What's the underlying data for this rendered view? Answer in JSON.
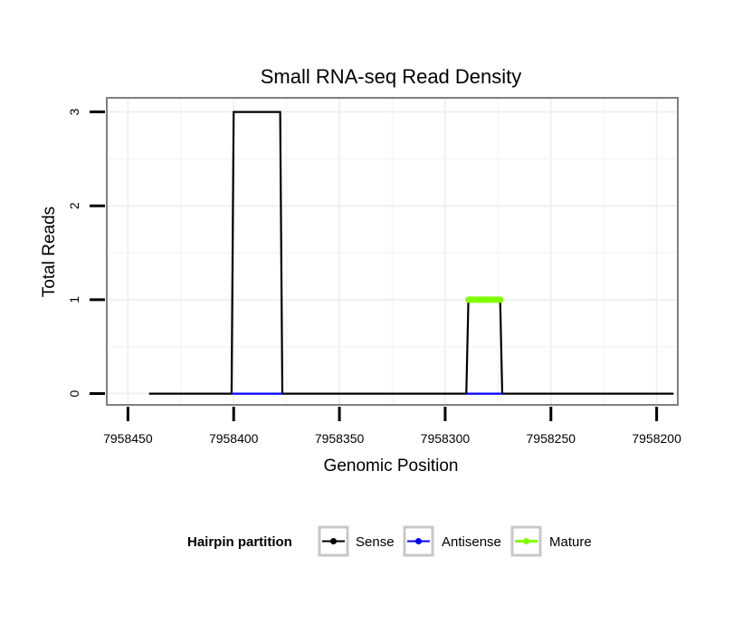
{
  "chart_data": {
    "type": "line",
    "title": "Small RNA-seq Read Density",
    "xlabel": "Genomic Position",
    "ylabel": "Total Reads",
    "x_reversed": true,
    "xlim": [
      7958460,
      7958190
    ],
    "ylim": [
      -0.12,
      3.15
    ],
    "x_ticks": [
      7958450,
      7958400,
      7958350,
      7958300,
      7958250,
      7958200
    ],
    "x_tick_labels": [
      "7958450",
      "7958400",
      "7958350",
      "7958300",
      "7958250",
      "7958200"
    ],
    "y_ticks": [
      0,
      1,
      2,
      3
    ],
    "y_tick_labels": [
      "0",
      "1",
      "2",
      "3"
    ],
    "grid": true,
    "legend_position": "bottom",
    "legend_title": "Hairpin partition",
    "series": [
      {
        "name": "Sense",
        "color": "#000000",
        "x": [
          7958440,
          7958401,
          7958400,
          7958378,
          7958377,
          7958290,
          7958289,
          7958274,
          7958273,
          7958192
        ],
        "y": [
          0,
          0,
          3,
          3,
          0,
          0,
          1,
          1,
          0,
          0
        ]
      },
      {
        "name": "Antisense",
        "color": "#0000ff",
        "segments": [
          {
            "x": [
              7958401,
              7958377
            ],
            "y": [
              0,
              0
            ]
          },
          {
            "x": [
              7958290,
              7958273
            ],
            "y": [
              0,
              0
            ]
          }
        ]
      },
      {
        "name": "Mature",
        "color": "#7fff00",
        "x": [
          7958289,
          7958274
        ],
        "y": [
          1,
          1
        ]
      }
    ]
  }
}
